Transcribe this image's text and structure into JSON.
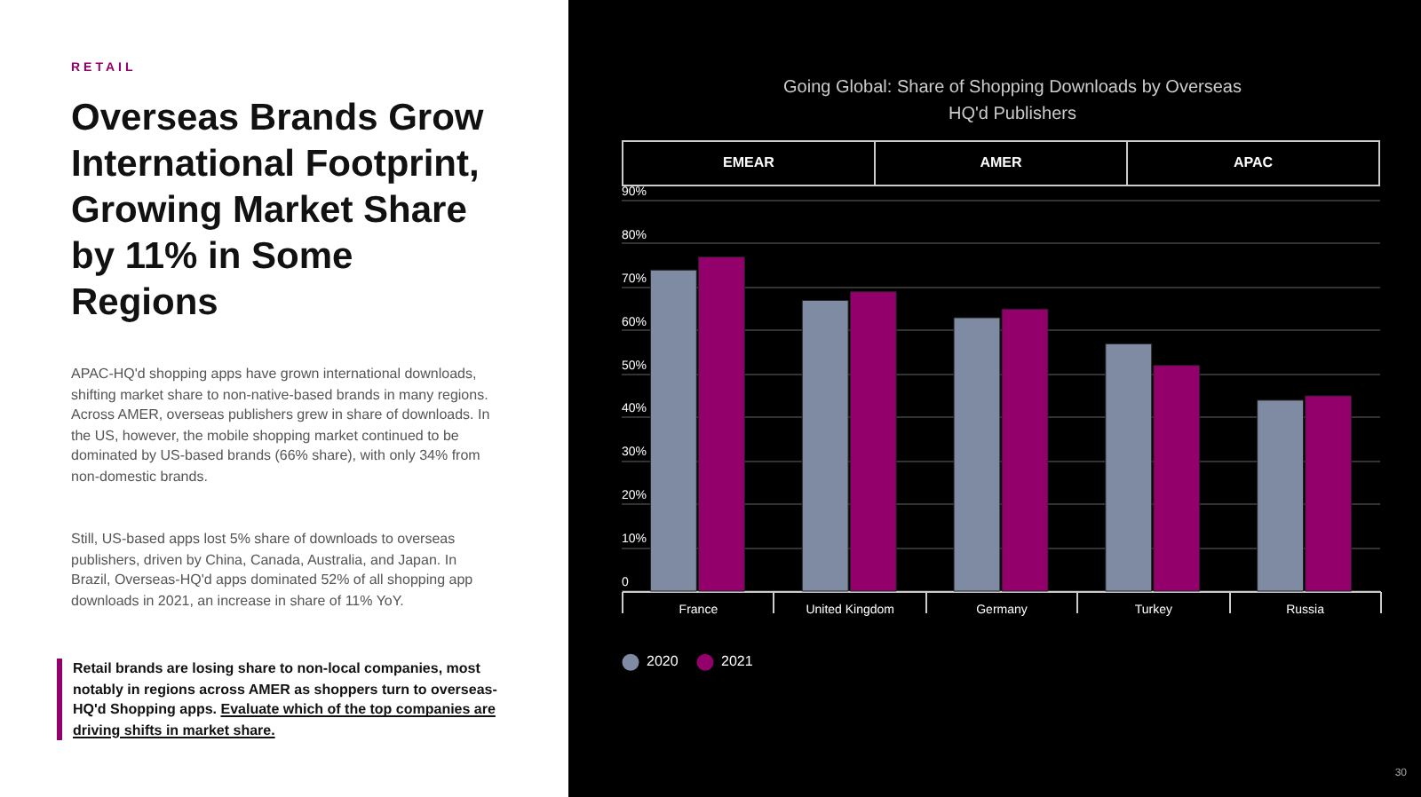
{
  "chart_data": {
    "type": "bar",
    "title": "Going Global: Share of Shopping Downloads by Overseas HQ'd Publishers",
    "categories": [
      "France",
      "United Kingdom",
      "Germany",
      "Turkey",
      "Russia"
    ],
    "series": [
      {
        "name": "2020",
        "color": "#7f8ba3",
        "values": [
          74,
          67,
          63,
          57,
          44
        ]
      },
      {
        "name": "2021",
        "color": "#93006b",
        "values": [
          77,
          69,
          65,
          52,
          45
        ]
      }
    ],
    "ylim": [
      0,
      90
    ],
    "yticks": [
      0,
      {
        "value": 10,
        "label": "10%"
      },
      {
        "value": 20,
        "label": "20%"
      },
      {
        "value": 30,
        "label": "30%"
      },
      {
        "value": 40,
        "label": "40%"
      },
      {
        "value": 50,
        "label": "50%"
      },
      {
        "value": 60,
        "label": "60%"
      },
      {
        "value": 70,
        "label": "70%"
      },
      {
        "value": 80,
        "label": "80%"
      },
      {
        "value": 90,
        "label": "90%"
      }
    ],
    "grid": "y",
    "legend": "bottom",
    "annotations": [
      "RETAIL",
      "Overseas Brands Grow International Footprint, Growing Market Share by 11% in Some Regions",
      "APAC-HQ'd shopping apps have grown international downloads, shifting market share to non-native-based brands in many regions. Across AMER, overseas publishers grew in share of downloads. In the US, however, the mobile shopping market continued to be dominated by US-based brands (66% share), with only 34% from non-domestic brands.",
      "Still, US-based apps lost 5% share of downloads to overseas publishers, driven by China, Canada, Australia, and Japan. In Brazil, Overseas-HQ'd apps dominated 52% of all shopping app downloads in 2021, an increase in share of 11% YoY.",
      "Retail brands are losing share to non-local companies, most notably in regions across AMER as shoppers turn to overseas-HQ'd Shopping apps.",
      "Evaluate which of the top companies are driving shifts in market share.",
      "EMEAR",
      "AMER",
      "APAC",
      "30"
    ]
  }
}
